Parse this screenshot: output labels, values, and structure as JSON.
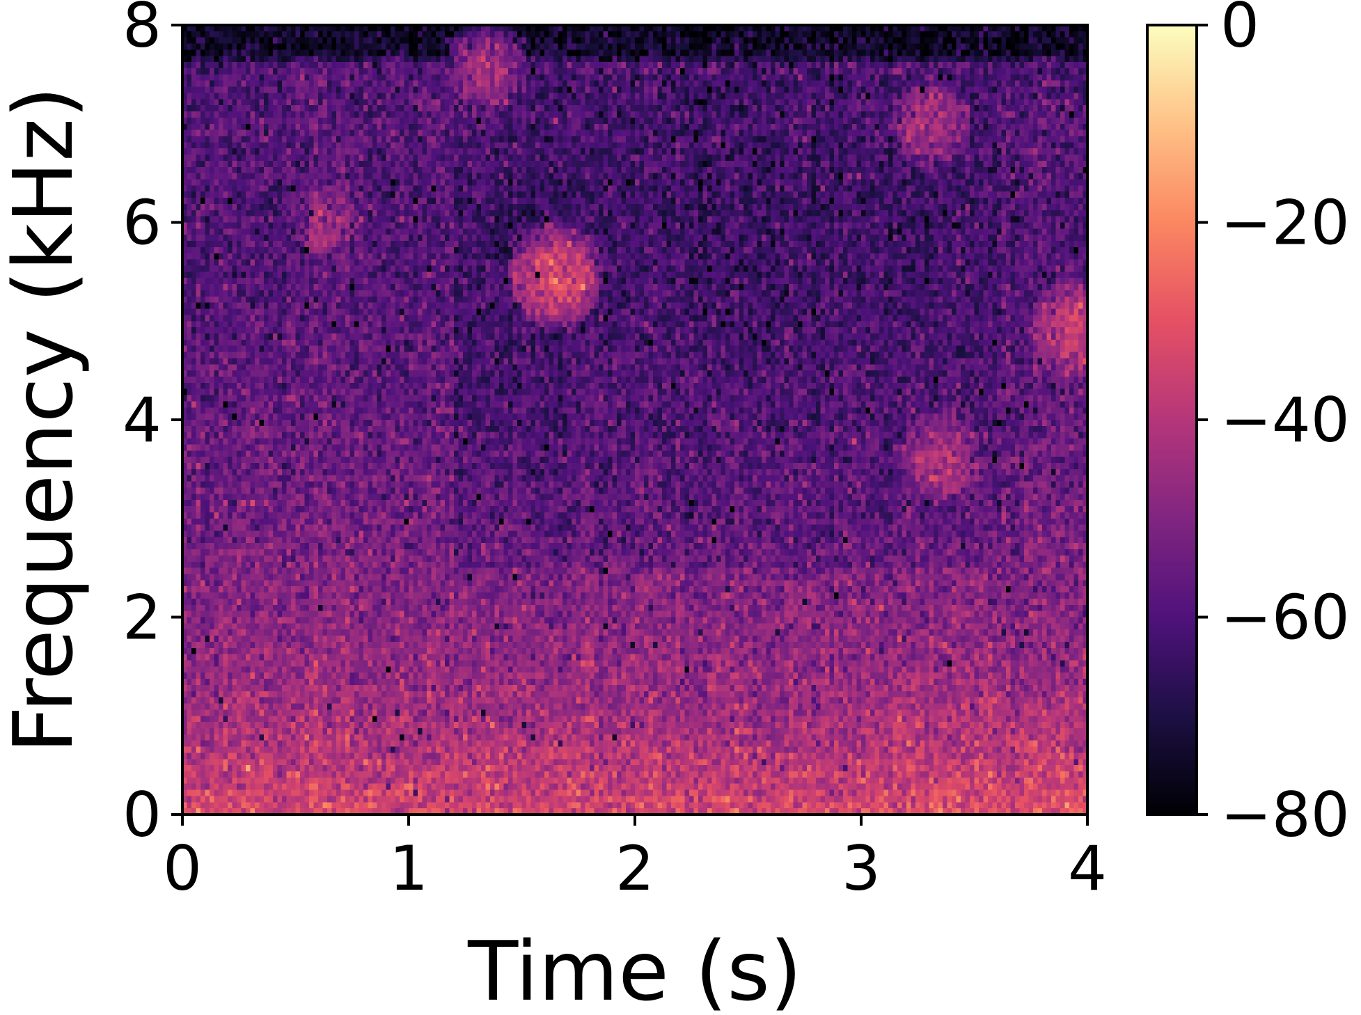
{
  "chart_data": {
    "type": "heatmap",
    "title": "",
    "xlabel": "Time (s)",
    "ylabel": "Frequency (kHz)",
    "xlim": [
      0,
      4
    ],
    "ylim": [
      0,
      8
    ],
    "x_ticks": [
      0,
      1,
      2,
      3,
      4
    ],
    "x_tick_labels": [
      "0",
      "1",
      "2",
      "3",
      "4"
    ],
    "y_ticks": [
      0,
      2,
      4,
      6,
      8
    ],
    "y_tick_labels": [
      "0",
      "2",
      "4",
      "6",
      "8"
    ],
    "colormap": "magma",
    "colorbar": {
      "range": [
        -80,
        0
      ],
      "ticks": [
        0,
        -20,
        -40,
        -60,
        -80
      ],
      "tick_labels": [
        "0",
        "−20",
        "−40",
        "−60",
        "−80"
      ]
    },
    "grid": false,
    "grid_resolution": {
      "time_bins": 200,
      "freq_bins": 128
    },
    "level_profile_db": [
      [
        0.0,
        -33
      ],
      [
        0.4,
        -38
      ],
      [
        1.0,
        -44
      ],
      [
        2.0,
        -49
      ],
      [
        3.0,
        -53
      ],
      [
        4.0,
        -56
      ],
      [
        5.0,
        -58
      ],
      [
        6.0,
        -60
      ],
      [
        7.0,
        -58
      ],
      [
        7.6,
        -60
      ],
      [
        7.7,
        -74
      ],
      [
        8.0,
        -76
      ]
    ],
    "hot_spots": [
      {
        "t": 1.65,
        "f": 5.45,
        "db": -32
      },
      {
        "t": 3.96,
        "f": 4.9,
        "db": -35
      },
      {
        "t": 3.35,
        "f": 3.6,
        "db": -40
      },
      {
        "t": 3.3,
        "f": 7.0,
        "db": -42
      },
      {
        "t": 1.35,
        "f": 7.5,
        "db": -44
      },
      {
        "t": 0.65,
        "f": 6.0,
        "db": -45
      }
    ]
  }
}
